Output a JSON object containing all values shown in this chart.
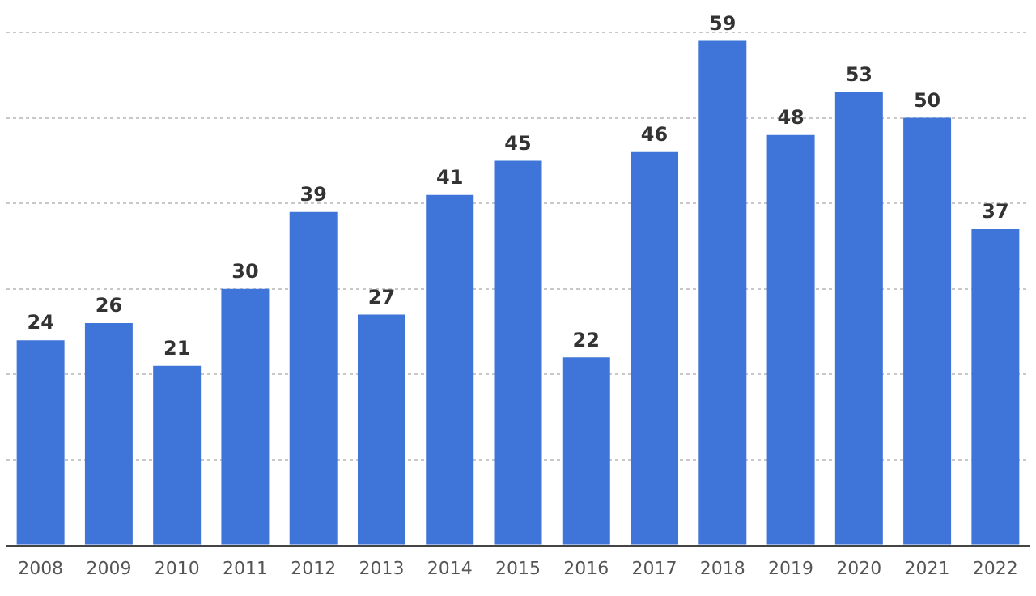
{
  "chart_data": {
    "type": "bar",
    "categories": [
      "2008",
      "2009",
      "2010",
      "2011",
      "2012",
      "2013",
      "2014",
      "2015",
      "2016",
      "2017",
      "2018",
      "2019",
      "2020",
      "2021",
      "2022"
    ],
    "values": [
      24,
      26,
      21,
      30,
      39,
      27,
      41,
      45,
      22,
      46,
      59,
      48,
      53,
      50,
      37
    ],
    "color": "#3f74d8",
    "ylim": [
      0,
      60
    ],
    "yticks": [
      {
        "value": 0,
        "label": null
      },
      {
        "value": 10,
        "label": null
      },
      {
        "value": 20,
        "label": null
      },
      {
        "value": 30,
        "label": null
      },
      {
        "value": 40,
        "label": null
      },
      {
        "value": 50,
        "label": null
      },
      {
        "value": 60,
        "label": null
      }
    ],
    "grid": "y",
    "tick_labels": "x",
    "data_labels": true
  }
}
